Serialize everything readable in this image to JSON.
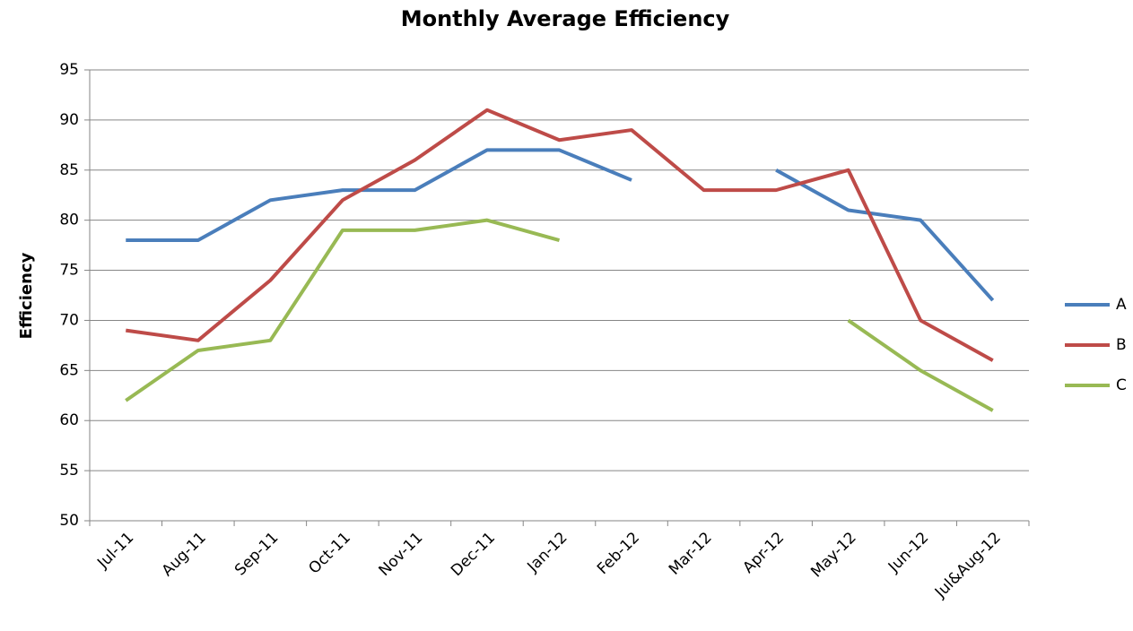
{
  "chart_data": {
    "type": "line",
    "title": "Monthly Average Efficiency",
    "y_label": "Efficiency",
    "categories": [
      "Jul-11",
      "Aug-11",
      "Sep-11",
      "Oct-11",
      "Nov-11",
      "Dec-11",
      "Jan-12",
      "Feb-12",
      "Mar-12",
      "Apr-12",
      "May-12",
      "Jun-12",
      "Jul&Aug-12"
    ],
    "series": [
      {
        "name": "A",
        "color": "#4a7ebb",
        "values": [
          78,
          78,
          82,
          83,
          83,
          87,
          87,
          84,
          null,
          85,
          81,
          80,
          72
        ]
      },
      {
        "name": "B",
        "color": "#be4b48",
        "values": [
          69,
          68,
          74,
          82,
          86,
          91,
          88,
          89,
          83,
          83,
          85,
          70,
          66
        ]
      },
      {
        "name": "C",
        "color": "#98b954",
        "values": [
          62,
          67,
          68,
          79,
          79,
          80,
          78,
          null,
          null,
          null,
          70,
          65,
          61
        ]
      }
    ],
    "ylim": [
      50,
      95
    ],
    "yticks": [
      50,
      55,
      60,
      65,
      70,
      75,
      80,
      85,
      90,
      95
    ],
    "grid": true,
    "legend": "right"
  }
}
